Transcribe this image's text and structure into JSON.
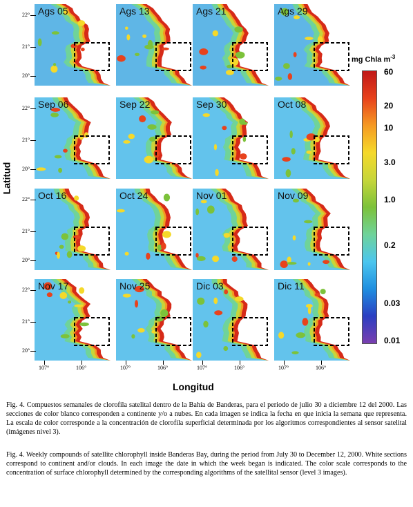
{
  "figure": {
    "panels": [
      {
        "date": "Ags 05"
      },
      {
        "date": "Ags 13"
      },
      {
        "date": "Ags 21"
      },
      {
        "date": "Ags 29"
      },
      {
        "date": "Sep 06"
      },
      {
        "date": "Sep 22"
      },
      {
        "date": "Sep 30"
      },
      {
        "date": "Oct 08"
      },
      {
        "date": "Oct 16"
      },
      {
        "date": "Oct 24"
      },
      {
        "date": "Nov 01"
      },
      {
        "date": "Nov 09"
      },
      {
        "date": "Nov 17"
      },
      {
        "date": "Nov 25"
      },
      {
        "date": "Dic 03"
      },
      {
        "date": "Dic 11"
      }
    ],
    "y_axis_label": "Latitud",
    "x_axis_label": "Longitud",
    "lat_ticks": [
      "22°",
      "21°",
      "20°"
    ],
    "lon_ticks": [
      "107°",
      "106°"
    ],
    "colorbar": {
      "title": "mg Chla m",
      "title_superscript": "-3",
      "ticks": [
        "60",
        "20",
        "10",
        "3.0",
        "1.0",
        "0.2",
        "0.03",
        "0.01"
      ],
      "colors": [
        "#7a3fb0",
        "#2b3fc2",
        "#1f8fe0",
        "#4cc6ee",
        "#6fd39a",
        "#7cc23a",
        "#c6d63a",
        "#f5d92a",
        "#f59a22",
        "#e8421c",
        "#c01818"
      ]
    }
  },
  "captions": {
    "spanish": "Fig. 4. Compuestos semanales de clorofila satelital dentro de la Bahía de Banderas, para el periodo de julio 30 a diciembre 12 del 2000. Las secciones de color blanco corresponden a continente y/o a nubes. En cada imagen se indica la fecha en que inicia la semana que representa. La escala de color corresponde a la concentración de clorofila superficial determinada por los algoritmos correspondientes al sensor satelital (imágenes nivel 3).",
    "english": "Fig. 4. Weekly compounds of satellite chlorophyll inside Banderas Bay, during the period from July 30 to December 12, 2000. White sections correspond to continent and/or clouds. In each image the date in which the week began is indicated. The color scale corresponds to the concentration of surface chlorophyll determined by the corresponding algorithms of the satellital sensor (level 3 images)."
  }
}
